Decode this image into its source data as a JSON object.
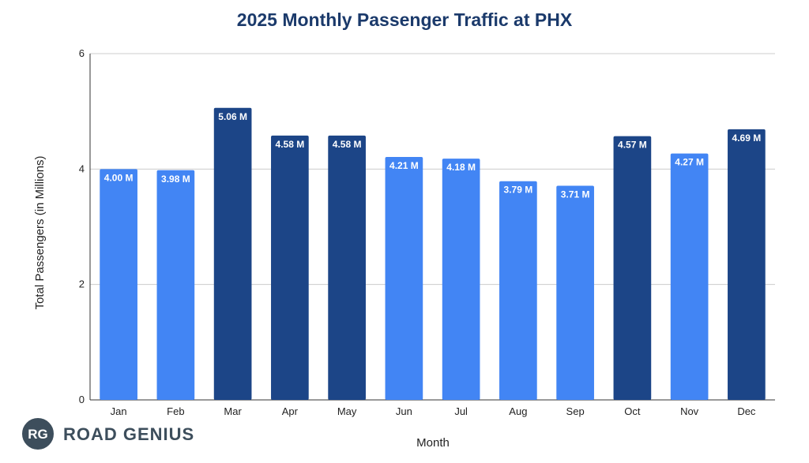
{
  "chart_data": {
    "type": "bar",
    "title": "2025 Monthly Passenger Traffic at PHX",
    "xlabel": "Month",
    "ylabel": "Total Passengers (in Millions)",
    "ylim": [
      0,
      6
    ],
    "yticks": [
      0,
      2,
      4,
      6
    ],
    "grid": true,
    "categories": [
      "Jan",
      "Feb",
      "Mar",
      "Apr",
      "May",
      "Jun",
      "Jul",
      "Aug",
      "Sep",
      "Oct",
      "Nov",
      "Dec"
    ],
    "values": [
      4.0,
      3.98,
      5.06,
      4.58,
      4.58,
      4.21,
      4.18,
      3.79,
      3.71,
      4.57,
      4.27,
      4.69
    ],
    "data_labels": [
      "4.00 M",
      "3.98 M",
      "5.06 M",
      "4.58 M",
      "4.58 M",
      "4.21 M",
      "4.18 M",
      "3.79 M",
      "3.71 M",
      "4.57 M",
      "4.27 M",
      "4.69 M"
    ],
    "highlighted": [
      false,
      false,
      true,
      true,
      true,
      false,
      false,
      false,
      false,
      true,
      false,
      true
    ]
  },
  "colors": {
    "title": "#1b3a6b",
    "bar_default": "#4285f4",
    "bar_highlight": "#1c4587",
    "grid": "#cccccc",
    "axis": "#333333",
    "logo": "#3d4e5c"
  },
  "branding": {
    "badge_text": "RG",
    "logo_text": "ROAD GENIUS"
  }
}
